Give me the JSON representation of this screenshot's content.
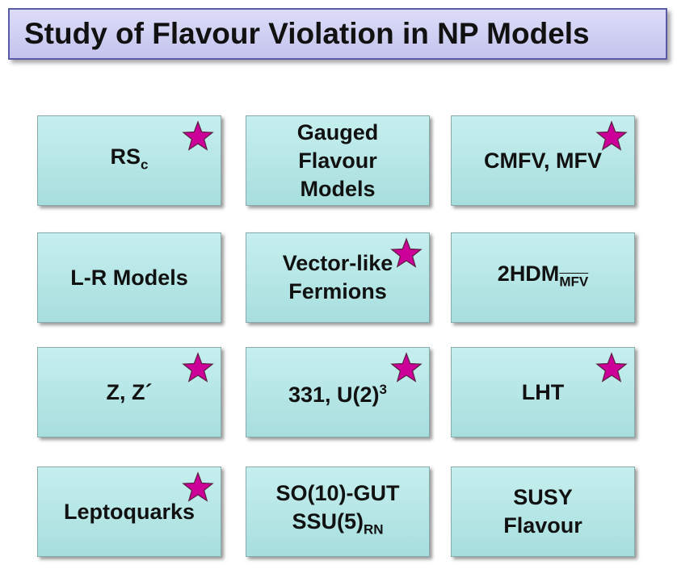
{
  "title": "Study of Flavour Violation in NP Models",
  "boxes": [
    {
      "lines": [
        {
          "text": "RS",
          "sub": "c"
        }
      ],
      "star": true
    },
    {
      "lines": [
        {
          "text": "Gauged"
        },
        {
          "text": "Flavour"
        },
        {
          "text": "Models"
        }
      ],
      "star": false
    },
    {
      "lines": [
        {
          "text": "CMFV, MFV"
        }
      ],
      "star": true
    },
    {
      "lines": [
        {
          "text": "L-R Models"
        }
      ],
      "star": false
    },
    {
      "lines": [
        {
          "text": "Vector-like"
        },
        {
          "text": "Fermions"
        }
      ],
      "star": true
    },
    {
      "lines": [
        {
          "text": "2HDM",
          "sub": "MFV",
          "sub_overline": true
        }
      ],
      "star": false
    },
    {
      "lines": [
        {
          "text": "Z, Z´"
        }
      ],
      "star": true
    },
    {
      "lines": [
        {
          "text": "331, U(2)",
          "sup": "3"
        }
      ],
      "star": true
    },
    {
      "lines": [
        {
          "text": "LHT"
        }
      ],
      "star": true
    },
    {
      "lines": [
        {
          "text": "Leptoquarks"
        }
      ],
      "star": true
    },
    {
      "lines": [
        {
          "text": "SO(10)-GUT"
        },
        {
          "text": "SSU(5)",
          "sub": "RN"
        }
      ],
      "star": false
    },
    {
      "lines": [
        {
          "text": "SUSY"
        },
        {
          "text": "Flavour"
        }
      ],
      "star": false
    }
  ]
}
